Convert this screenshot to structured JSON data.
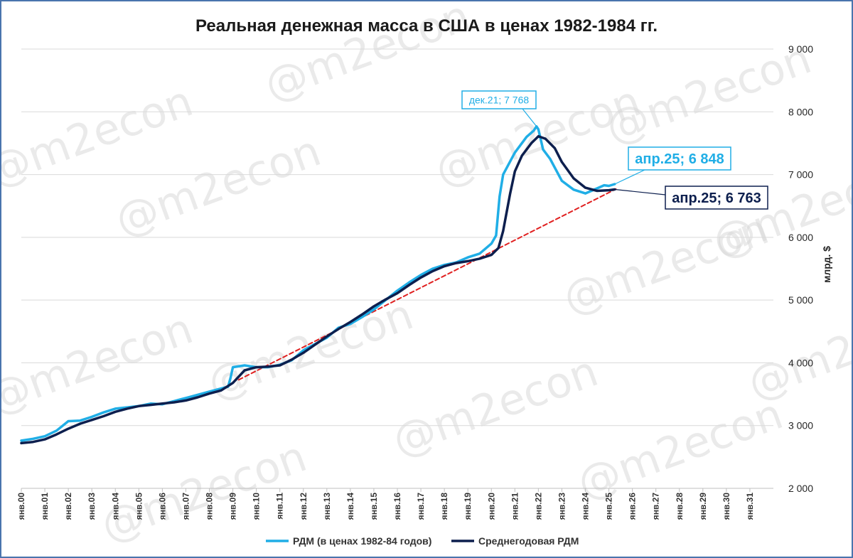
{
  "chart_data": {
    "type": "line",
    "title": "Реальная денежная масса в США в ценах 1982-1984 гг.",
    "ylabel": "млрд. $",
    "ylim": [
      2000,
      9000
    ],
    "yticks": [
      "2 000",
      "3 000",
      "4 000",
      "5 000",
      "6 000",
      "7 000",
      "8 000",
      "9 000"
    ],
    "xlim": [
      2000,
      2032
    ],
    "xticks": [
      "янв.00",
      "янв.01",
      "янв.02",
      "янв.03",
      "янв.04",
      "янв.05",
      "янв.06",
      "янв.07",
      "янв.08",
      "янв.09",
      "янв.10",
      "янв.11",
      "янв.12",
      "янв.13",
      "янв.14",
      "янв.15",
      "янв.16",
      "янв.17",
      "янв.18",
      "янв.19",
      "янв.20",
      "янв.21",
      "янв.22",
      "янв.23",
      "янв.24",
      "янв.25",
      "янв.26",
      "янв.27",
      "янв.28",
      "янв.29",
      "янв.30",
      "янв.31"
    ],
    "grid": "horizontal",
    "legend_position": "bottom",
    "series": [
      {
        "name": "РДМ (в ценах 1982-84 годов)",
        "color": "#20aee6",
        "points": [
          [
            2000,
            2760
          ],
          [
            2000.5,
            2790
          ],
          [
            2001,
            2830
          ],
          [
            2001.5,
            2920
          ],
          [
            2002,
            3070
          ],
          [
            2002.5,
            3080
          ],
          [
            2003,
            3140
          ],
          [
            2003.5,
            3210
          ],
          [
            2004,
            3270
          ],
          [
            2004.5,
            3290
          ],
          [
            2005,
            3310
          ],
          [
            2005.5,
            3350
          ],
          [
            2006,
            3340
          ],
          [
            2006.5,
            3390
          ],
          [
            2007,
            3440
          ],
          [
            2007.5,
            3490
          ],
          [
            2008,
            3540
          ],
          [
            2008.5,
            3590
          ],
          [
            2008.8,
            3620
          ],
          [
            2008.9,
            3760
          ],
          [
            2009,
            3930
          ],
          [
            2009.5,
            3960
          ],
          [
            2010,
            3930
          ],
          [
            2010.5,
            3930
          ],
          [
            2011,
            3970
          ],
          [
            2011.5,
            4040
          ],
          [
            2012,
            4200
          ],
          [
            2012.5,
            4300
          ],
          [
            2013,
            4400
          ],
          [
            2013.5,
            4560
          ],
          [
            2014,
            4620
          ],
          [
            2014.5,
            4730
          ],
          [
            2015,
            4850
          ],
          [
            2015.5,
            5000
          ],
          [
            2016,
            5150
          ],
          [
            2016.5,
            5280
          ],
          [
            2017,
            5400
          ],
          [
            2017.5,
            5500
          ],
          [
            2018,
            5560
          ],
          [
            2018.5,
            5600
          ],
          [
            2019,
            5680
          ],
          [
            2019.5,
            5740
          ],
          [
            2020,
            5900
          ],
          [
            2020.2,
            6030
          ],
          [
            2020.35,
            6650
          ],
          [
            2020.5,
            7000
          ],
          [
            2021,
            7350
          ],
          [
            2021.5,
            7600
          ],
          [
            2021.8,
            7700
          ],
          [
            2021.92,
            7768
          ],
          [
            2022,
            7720
          ],
          [
            2022.2,
            7400
          ],
          [
            2022.5,
            7250
          ],
          [
            2023,
            6900
          ],
          [
            2023.5,
            6760
          ],
          [
            2024,
            6700
          ],
          [
            2024.5,
            6780
          ],
          [
            2024.8,
            6830
          ],
          [
            2025,
            6820
          ],
          [
            2025.25,
            6848
          ]
        ]
      },
      {
        "name": "Среднегодовая РДМ",
        "color": "#0d1f4e",
        "points": [
          [
            2000,
            2720
          ],
          [
            2000.5,
            2740
          ],
          [
            2001,
            2780
          ],
          [
            2001.5,
            2860
          ],
          [
            2002,
            2950
          ],
          [
            2002.5,
            3030
          ],
          [
            2003,
            3090
          ],
          [
            2003.5,
            3150
          ],
          [
            2004,
            3220
          ],
          [
            2004.5,
            3270
          ],
          [
            2005,
            3310
          ],
          [
            2005.5,
            3330
          ],
          [
            2006,
            3350
          ],
          [
            2006.5,
            3370
          ],
          [
            2007,
            3400
          ],
          [
            2007.5,
            3450
          ],
          [
            2008,
            3510
          ],
          [
            2008.5,
            3560
          ],
          [
            2009,
            3680
          ],
          [
            2009.5,
            3880
          ],
          [
            2010,
            3930
          ],
          [
            2010.5,
            3940
          ],
          [
            2011,
            3960
          ],
          [
            2011.5,
            4050
          ],
          [
            2012,
            4160
          ],
          [
            2012.5,
            4290
          ],
          [
            2013,
            4420
          ],
          [
            2013.5,
            4540
          ],
          [
            2014,
            4650
          ],
          [
            2014.5,
            4770
          ],
          [
            2015,
            4900
          ],
          [
            2015.5,
            5010
          ],
          [
            2016,
            5110
          ],
          [
            2016.5,
            5240
          ],
          [
            2017,
            5360
          ],
          [
            2017.5,
            5460
          ],
          [
            2018,
            5540
          ],
          [
            2018.5,
            5590
          ],
          [
            2019,
            5620
          ],
          [
            2019.5,
            5660
          ],
          [
            2020,
            5720
          ],
          [
            2020.3,
            5830
          ],
          [
            2020.5,
            6100
          ],
          [
            2020.8,
            6700
          ],
          [
            2021,
            7050
          ],
          [
            2021.3,
            7300
          ],
          [
            2021.7,
            7500
          ],
          [
            2022,
            7610
          ],
          [
            2022.3,
            7570
          ],
          [
            2022.7,
            7420
          ],
          [
            2023,
            7200
          ],
          [
            2023.5,
            6940
          ],
          [
            2024,
            6790
          ],
          [
            2024.5,
            6740
          ],
          [
            2025,
            6750
          ],
          [
            2025.25,
            6763
          ]
        ]
      },
      {
        "name": "",
        "color": "#e02020",
        "dashed": true,
        "points": [
          [
            2009.25,
            3730
          ],
          [
            2025.3,
            6770
          ]
        ]
      }
    ],
    "annotations": [
      {
        "text": "дек.21; 7 768",
        "x": 2021.92,
        "y": 7768,
        "color": "#20aee6",
        "size": "small"
      },
      {
        "text": "апр.25; 6 848",
        "x": 2025.25,
        "y": 6848,
        "color": "#20aee6",
        "size": "large"
      },
      {
        "text": "апр.25; 6 763",
        "x": 2025.25,
        "y": 6763,
        "color": "#0d1f4e",
        "size": "large"
      }
    ],
    "watermark": "@m2econ"
  }
}
